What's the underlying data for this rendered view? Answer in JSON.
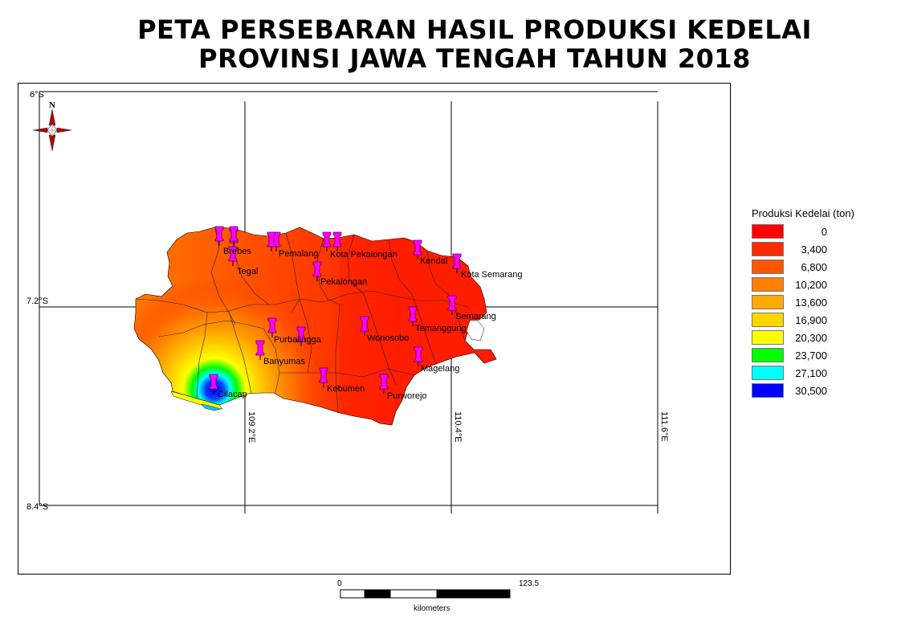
{
  "title": {
    "line1": "PETA PERSEBARAN HASIL PRODUKSI KEDELAI",
    "line2": "PROVINSI JAWA TENGAH TAHUN 2018"
  },
  "grid_labels": {
    "lat_top": "6°S",
    "lat_mid": "7.2°S",
    "lat_bottom": "8.4°S",
    "lon_1": "109.2°E",
    "lon_2": "110.4°E",
    "lon_3": "111.6°E"
  },
  "north_arrow": {
    "letter": "N",
    "icon": "north-arrow-compass-icon"
  },
  "legend": {
    "title": "Produksi Kedelai (ton)",
    "classes": [
      {
        "label": "0",
        "color": "#ff0000"
      },
      {
        "label": "3,400",
        "color": "#ff2a00"
      },
      {
        "label": "6,800",
        "color": "#ff5500"
      },
      {
        "label": "10,200",
        "color": "#ff8000"
      },
      {
        "label": "13,600",
        "color": "#ffaa00"
      },
      {
        "label": "16,900",
        "color": "#ffd500"
      },
      {
        "label": "20,300",
        "color": "#ffff00"
      },
      {
        "label": "23,700",
        "color": "#00ff00"
      },
      {
        "label": "27,100",
        "color": "#00ffff"
      },
      {
        "label": "30,500",
        "color": "#0000ff"
      }
    ]
  },
  "places": [
    {
      "name": "Brebes"
    },
    {
      "name": "Tegal"
    },
    {
      "name": "Pemalang"
    },
    {
      "name": "Kota Pekalongan"
    },
    {
      "name": "Pekalongan"
    },
    {
      "name": "Kendal"
    },
    {
      "name": "Kota Semarang"
    },
    {
      "name": "Semarang"
    },
    {
      "name": "Temanggung"
    },
    {
      "name": "Wonosobo"
    },
    {
      "name": "Purbalingga"
    },
    {
      "name": "Banyumas"
    },
    {
      "name": "Magelang"
    },
    {
      "name": "Kebumen"
    },
    {
      "name": "Purworejo"
    },
    {
      "name": "Cilacap"
    }
  ],
  "scale_bar": {
    "start": "0",
    "end": "123.5",
    "unit": "kilometers"
  },
  "colors": {
    "marker": "#ff00ff",
    "marker_stroke": "#5a005a"
  }
}
